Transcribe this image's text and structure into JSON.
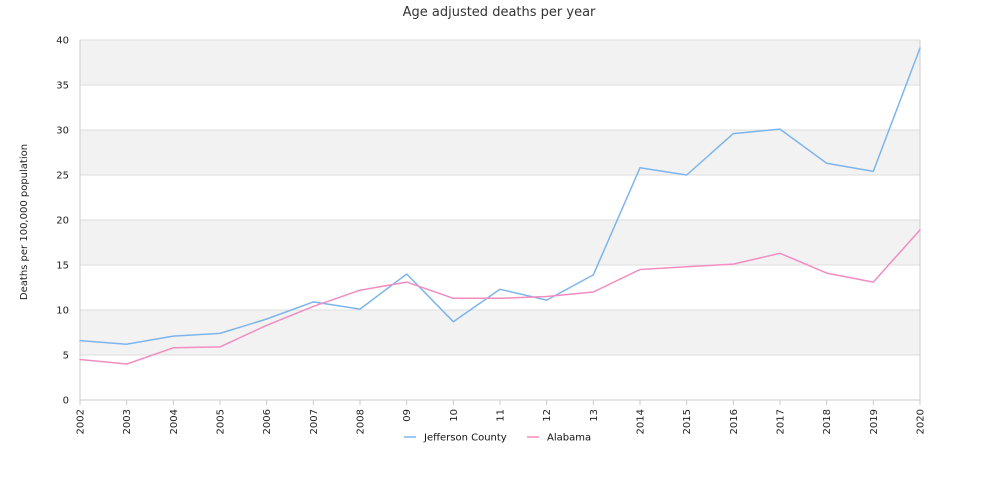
{
  "chart_data": {
    "type": "line",
    "title": "Age adjusted deaths per year",
    "xlabel": "",
    "ylabel": "Deaths per 100,000 population",
    "ylim": [
      0,
      40
    ],
    "yticks": [
      0,
      5,
      10,
      15,
      20,
      25,
      30,
      35,
      40
    ],
    "categories": [
      "2002",
      "2003",
      "2004",
      "2005",
      "2006",
      "2007",
      "2008",
      "09",
      "10",
      "11",
      "12",
      "13",
      "2014",
      "2015",
      "2016",
      "2017",
      "2018",
      "2019",
      "2020"
    ],
    "grid": "horizontal alternating bands",
    "legend_position": "bottom-center",
    "series": [
      {
        "name": "Jefferson County",
        "color": "#7cb5ec",
        "values": [
          6.6,
          6.2,
          7.1,
          7.4,
          9.0,
          10.9,
          10.1,
          14.0,
          8.7,
          12.3,
          11.1,
          13.9,
          25.8,
          25.0,
          29.6,
          30.1,
          26.3,
          25.4,
          39.1
        ]
      },
      {
        "name": "Alabama",
        "color": "#f28cc1",
        "values": [
          4.5,
          4.0,
          5.8,
          5.9,
          8.3,
          10.4,
          12.2,
          13.1,
          11.3,
          11.3,
          11.5,
          12.0,
          14.5,
          14.8,
          15.1,
          16.3,
          14.1,
          13.1,
          18.9
        ]
      }
    ],
    "colors": {
      "band": "#f2f2f2",
      "gridline": "#dddddd",
      "axis": "#cccccc"
    }
  }
}
